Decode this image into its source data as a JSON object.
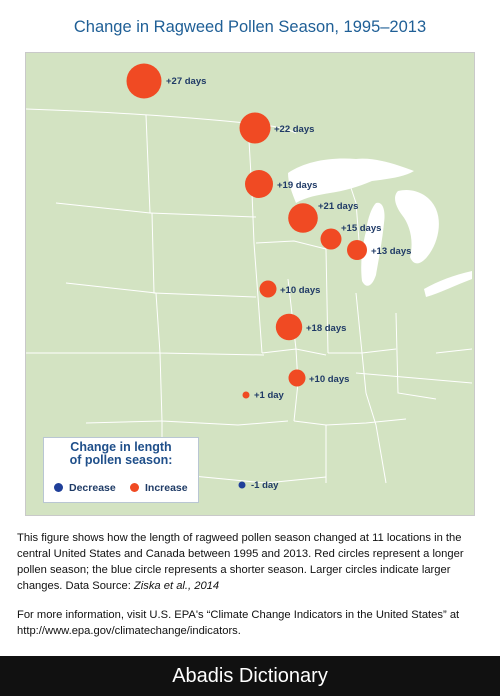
{
  "title": "Change in Ragweed Pollen Season, 1995–2013",
  "colors": {
    "increase": "#f04a23",
    "decrease": "#1f3f99",
    "land": "#d3e3c2",
    "water": "#ffffff",
    "border": "#ffffff"
  },
  "locations": [
    {
      "label": "+27 days",
      "change_days": 27
    },
    {
      "label": "+22 days",
      "change_days": 22
    },
    {
      "label": "+19 days",
      "change_days": 19
    },
    {
      "label": "+21 days",
      "change_days": 21
    },
    {
      "label": "+15 days",
      "change_days": 15
    },
    {
      "label": "+13 days",
      "change_days": 13
    },
    {
      "label": "+10 days",
      "change_days": 10
    },
    {
      "label": "+18 days",
      "change_days": 18
    },
    {
      "label": "+10 days",
      "change_days": 10
    },
    {
      "label": "+1 day",
      "change_days": 1
    },
    {
      "label": "-1 day",
      "change_days": -1
    }
  ],
  "legend": {
    "title_line1": "Change in length",
    "title_line2": "of pollen season:",
    "decrease": "Decrease",
    "increase": "Increase"
  },
  "caption": {
    "para1": "This figure shows how the length of ragweed pollen season changed at 11 locations in the central United States and Canada between 1995 and 2013. Red circles represent a longer pollen season; the blue circle represents a shorter season. Larger circles indicate larger changes. Data Source: ",
    "source_ref": "Ziska et al., 2014",
    "para2": "For more information, visit U.S. EPA's “Climate Change Indicators in the United States” at http://www.epa.gov/climatechange/indicators."
  },
  "footer": "Abadis Dictionary"
}
